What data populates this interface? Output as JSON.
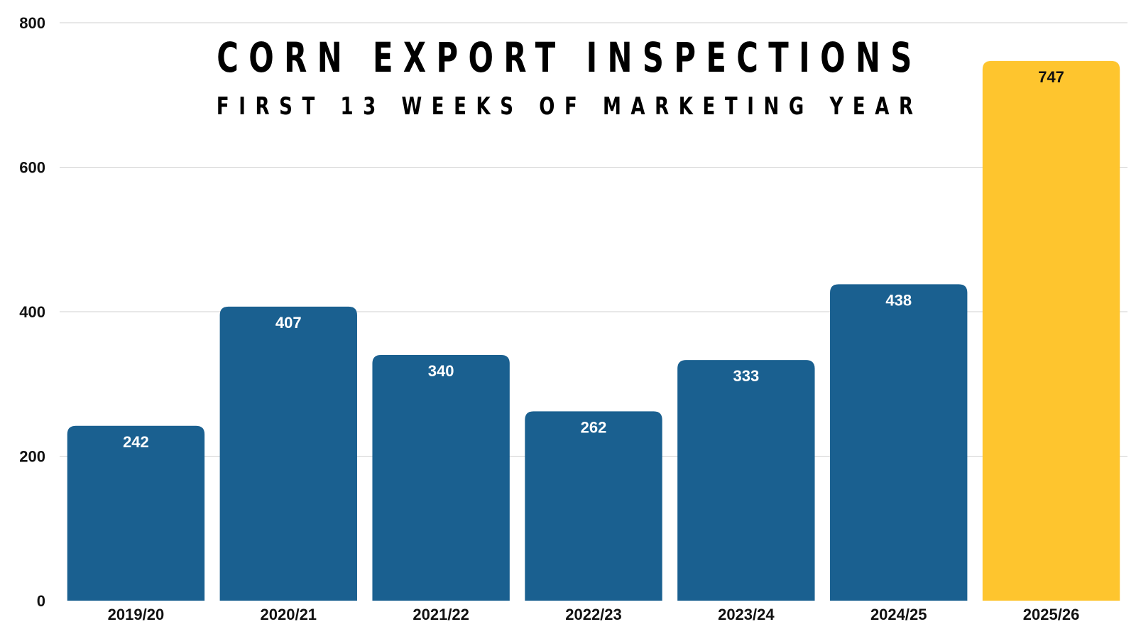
{
  "chart_data": {
    "type": "bar",
    "title": "CORN EXPORT INSPECTIONS",
    "subtitle": "FIRST 13 WEEKS OF MARKETING YEAR",
    "xlabel": "",
    "ylabel": "",
    "categories": [
      "2019/20",
      "2020/21",
      "2021/22",
      "2022/23",
      "2023/24",
      "2024/25",
      "2025/26"
    ],
    "values": [
      242,
      407,
      340,
      262,
      333,
      438,
      747
    ],
    "data_labels": [
      "242",
      "407",
      "340",
      "262",
      "333",
      "438",
      "747"
    ],
    "ylim": [
      0,
      800
    ],
    "yticks": [
      0,
      200,
      400,
      600,
      800
    ],
    "ytick_labels": [
      "0",
      "200",
      "400",
      "600",
      "800"
    ],
    "grid": true,
    "legend": "none",
    "colors": {
      "bar": "#1a6090",
      "highlight": "#fec52e",
      "label_on_bar": "#ffffff",
      "label_on_highlight": "#111111",
      "grid": "#d0d0d0"
    },
    "highlight_index": 6
  }
}
